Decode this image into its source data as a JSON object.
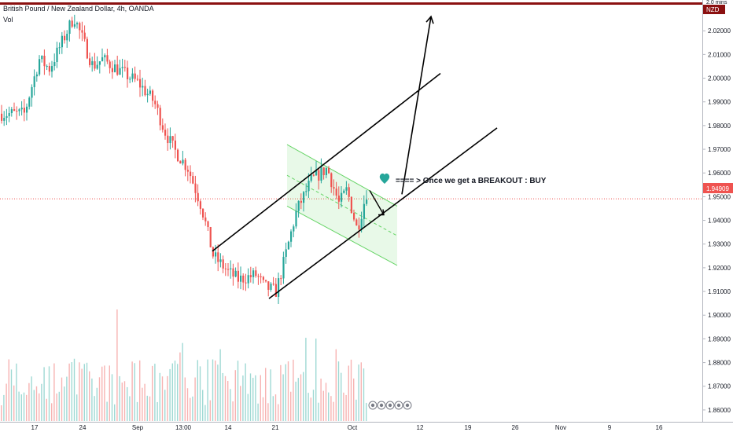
{
  "header": {
    "title": "British Pound / New Zealand Dollar, 4h, OANDA",
    "vol_label": "Vol"
  },
  "price_axis": {
    "top_label": "2.0 mins",
    "currency_badge": "NZD",
    "badge_flag": "7",
    "current_price": "1.94909"
  },
  "annotation": {
    "text": "==== > Once we get a BREAKOUT : BUY",
    "icon": "heart-icon"
  },
  "colors": {
    "up": "#26a69a",
    "down": "#ef5350",
    "resistance": "#8b1010",
    "channel": "#66d466",
    "current": "#ef5350",
    "drawing": "#000000"
  },
  "chart_data": {
    "type": "candlestick",
    "title": "British Pound / New Zealand Dollar, 4h, OANDA",
    "ylim": [
      1.855,
      2.032
    ],
    "y_ticks": [
      "2.02000",
      "2.01000",
      "2.00000",
      "1.99000",
      "1.98000",
      "1.97000",
      "1.96000",
      "1.95000",
      "1.94000",
      "1.93000",
      "1.92000",
      "1.91000",
      "1.90000",
      "1.89000",
      "1.88000",
      "1.87000",
      "1.86000"
    ],
    "x_ticks": [
      "17",
      "24",
      "Sep",
      "13:00",
      "14",
      "21",
      "Oct",
      "12",
      "19",
      "26",
      "Nov",
      "9",
      "16"
    ],
    "current_price": 1.94909,
    "resistance_level": 2.031,
    "anchors": [
      [
        "17",
        1.985
      ],
      [
        "19",
        1.995
      ],
      [
        "21",
        2.008
      ],
      [
        "23",
        2.004
      ],
      [
        "24",
        2.026
      ],
      [
        "26",
        2.005
      ],
      [
        "28",
        2.008
      ],
      [
        "Sep",
        1.998
      ],
      [
        "3",
        1.99
      ],
      [
        "5",
        1.978
      ],
      [
        "7",
        1.97
      ],
      [
        "9",
        1.962
      ],
      [
        "11",
        1.946
      ],
      [
        "13:00",
        1.925
      ],
      [
        "14",
        1.918
      ],
      [
        "16",
        1.915
      ],
      [
        "18",
        1.917
      ],
      [
        "19",
        1.912
      ],
      [
        "21",
        1.91
      ],
      [
        "22",
        1.92
      ],
      [
        "24",
        1.944
      ],
      [
        "26",
        1.957
      ],
      [
        "28",
        1.962
      ],
      [
        "29",
        1.947
      ],
      [
        "Oct",
        1.953
      ],
      [
        "2",
        1.936
      ],
      [
        "3",
        1.953
      ]
    ],
    "trend_lines": [
      {
        "name": "",
        "from": [
          "13:00",
          1.927
        ],
        "to": [
          "12",
          2.002
        ]
      },
      {
        "name": "",
        "from": [
          "21",
          1.907
        ],
        "to": [
          "19",
          1.979
        ]
      }
    ],
    "breakout_path": [
      [
        "10",
        1.951
      ],
      [
        "12",
        2.026
      ]
    ],
    "down_arrow": [
      [
        "4",
        1.948
      ],
      [
        "6",
        1.943
      ]
    ],
    "flag_channel": {
      "upper": [
        [
          "22",
          1.972
        ],
        [
          "10",
          1.946
        ]
      ],
      "lower": [
        [
          "22",
          1.946
        ],
        [
          "10",
          1.921
        ]
      ]
    },
    "volume": {
      "baseline": 0,
      "ylim": [
        0,
        1
      ],
      "note_icons": [
        "news-icon",
        "news-icon",
        "news-icon",
        "news-icon",
        "news-icon"
      ]
    }
  }
}
